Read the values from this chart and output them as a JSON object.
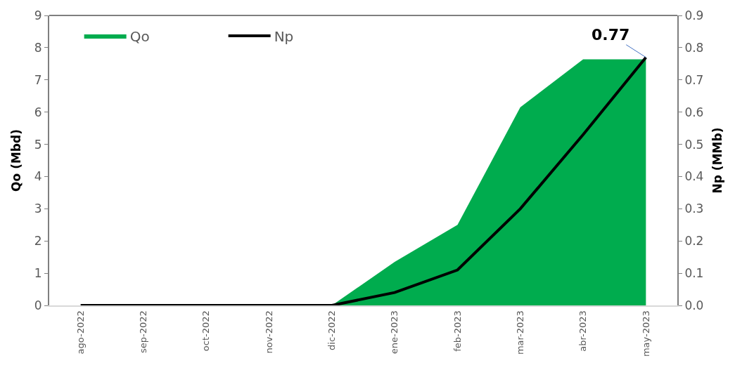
{
  "chart_data": {
    "type": "area",
    "ylabel": "Qo (Mbd)",
    "y2label": "Np (MMb)",
    "categories": [
      "ago-2022",
      "sep-2022",
      "oct-2022",
      "nov-2022",
      "dic-2022",
      "ene-2023",
      "feb-2023",
      "mar-2023",
      "abr-2023",
      "may-2023"
    ],
    "series": [
      {
        "name": "Qo",
        "color": "#00ac4e",
        "values": [
          0,
          0,
          0,
          0,
          0,
          1.35,
          2.5,
          6.15,
          7.64,
          7.64
        ]
      },
      {
        "name": "Np",
        "type": "line",
        "axis": "y2",
        "color": "#000000",
        "values": [
          0,
          0,
          0,
          0,
          0,
          0.04,
          0.11,
          0.3,
          0.53,
          0.77
        ],
        "value_labels": [
          null,
          null,
          null,
          null,
          null,
          null,
          null,
          null,
          null,
          "0.77"
        ]
      }
    ],
    "ylim": [
      0,
      9
    ],
    "yticks": [
      0,
      1,
      2,
      3,
      4,
      5,
      6,
      7,
      8,
      9
    ],
    "y2lim": [
      0,
      0.9
    ],
    "y2ticks": [
      {
        "value": 0,
        "label": "0.0"
      },
      0.1,
      0.2,
      0.3,
      0.4,
      0.5,
      0.6,
      0.7,
      0.8,
      0.9
    ],
    "legend": "top left",
    "marker": "none",
    "line_style": "solid"
  }
}
